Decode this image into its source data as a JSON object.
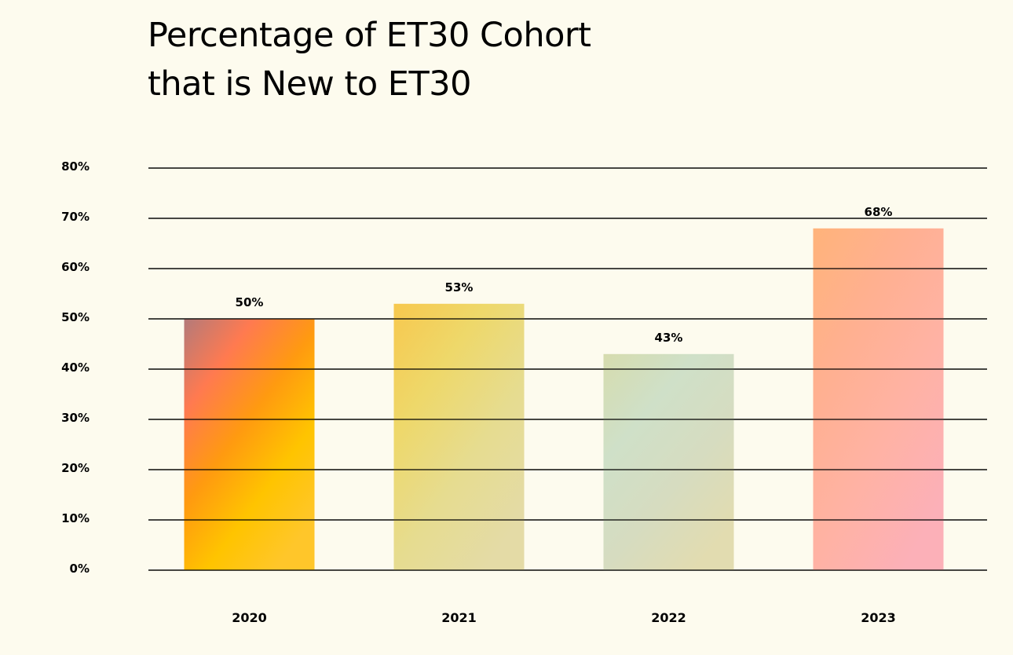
{
  "chart_data": {
    "type": "bar",
    "title_line1": "Percentage of ET30 Cohort",
    "title_line2": "that is New to ET30",
    "categories": [
      "2020",
      "2021",
      "2022",
      "2023"
    ],
    "values": [
      50,
      53,
      43,
      68
    ],
    "data_labels": [
      "50%",
      "53%",
      "43%",
      "68%"
    ],
    "y_ticks": [
      0,
      10,
      20,
      30,
      40,
      50,
      60,
      70,
      80
    ],
    "y_tick_labels": [
      "0%",
      "10%",
      "20%",
      "30%",
      "40%",
      "50%",
      "60%",
      "70%",
      "80%"
    ],
    "ylim": [
      0,
      80
    ],
    "grid": true,
    "bar_gradients": [
      [
        "#b37a7a",
        "#ff7a50",
        "#ff9a10",
        "#ffc400",
        "#ffc62a"
      ],
      [
        "#f7c84e",
        "#eed86a",
        "#e6dc90",
        "#e4dba6"
      ],
      [
        "#d6dcae",
        "#cfe0c8",
        "#d6dcc0",
        "#e2dcb0"
      ],
      [
        "#ffb37a",
        "#ffb090",
        "#ffb2a4",
        "#fcb0b8"
      ]
    ]
  }
}
